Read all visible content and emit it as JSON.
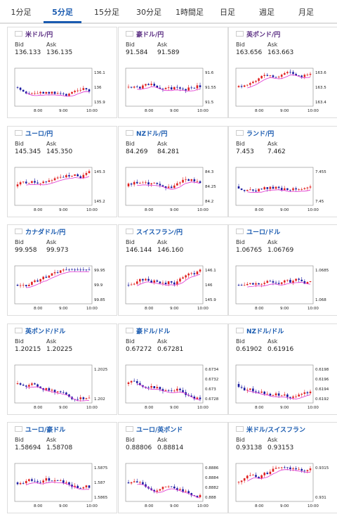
{
  "tabs": [
    "1分足",
    "5分足",
    "15分足",
    "30分足",
    "1時間足",
    "日足",
    "週足",
    "月足"
  ],
  "active_tab": 1,
  "labels": {
    "bid": "Bid",
    "ask": "Ask"
  },
  "colors": {
    "up": "#e02020",
    "down": "#1a1aa0",
    "ma": "#e030d0",
    "title_purple": "#5a2d82",
    "title_blue": "#1a5bb0"
  },
  "cards": [
    {
      "pair": "米ドル/円",
      "title_color": "purple",
      "flag": "us",
      "bid": "136.133",
      "ask": "136.135",
      "chart_data": {
        "type": "candlestick",
        "x_ticks": [
          "8:00",
          "9:00",
          "10:00"
        ],
        "y_ticks": [
          "136.1",
          "136",
          "135.9"
        ],
        "trend": "up"
      }
    },
    {
      "pair": "豪ドル/円",
      "title_color": "purple",
      "flag": "au",
      "bid": "91.584",
      "ask": "91.589",
      "chart_data": {
        "type": "candlestick",
        "x_ticks": [
          "8:00",
          "9:00",
          "10:00"
        ],
        "y_ticks": [
          "91.6",
          "91.55",
          "91.5"
        ],
        "trend": "up"
      }
    },
    {
      "pair": "英ポンド/円",
      "title_color": "purple",
      "flag": "gb",
      "bid": "163.656",
      "ask": "163.663",
      "chart_data": {
        "type": "candlestick",
        "x_ticks": [
          "8:00",
          "9:00",
          "10:00"
        ],
        "y_ticks": [
          "163.6",
          "163.5",
          "163.4"
        ],
        "trend": "up"
      }
    },
    {
      "pair": "ユーロ/円",
      "title_color": "blue",
      "flag": "eu",
      "bid": "145.345",
      "ask": "145.350",
      "chart_data": {
        "type": "candlestick",
        "x_ticks": [
          "8:00",
          "9:00",
          "10:00"
        ],
        "y_ticks": [
          "145.3",
          "145.2"
        ],
        "trend": "up"
      }
    },
    {
      "pair": "NZドル/円",
      "title_color": "blue",
      "flag": "nz",
      "bid": "84.269",
      "ask": "84.281",
      "chart_data": {
        "type": "candlestick",
        "x_ticks": [
          "8:00",
          "9:00",
          "10:00"
        ],
        "y_ticks": [
          "84.3",
          "84.25",
          "84.2"
        ],
        "trend": "up"
      }
    },
    {
      "pair": "ランド/円",
      "title_color": "blue",
      "flag": "za",
      "bid": "7.453",
      "ask": "7.462",
      "chart_data": {
        "type": "candlestick",
        "x_ticks": [
          "8:00",
          "9:00",
          "10:00"
        ],
        "y_ticks": [
          "7.455",
          "7.45"
        ],
        "trend": "flat"
      }
    },
    {
      "pair": "カナダドル/円",
      "title_color": "blue",
      "flag": "ca",
      "bid": "99.958",
      "ask": "99.973",
      "chart_data": {
        "type": "candlestick",
        "x_ticks": [
          "8:00",
          "9:00",
          "10:00"
        ],
        "y_ticks": [
          "99.95",
          "99.9",
          "99.85"
        ],
        "trend": "up"
      }
    },
    {
      "pair": "スイスフラン/円",
      "title_color": "blue",
      "flag": "ch",
      "bid": "146.144",
      "ask": "146.160",
      "chart_data": {
        "type": "candlestick",
        "x_ticks": [
          "8:00",
          "9:00",
          "10:00"
        ],
        "y_ticks": [
          "146.1",
          "146",
          "145.9"
        ],
        "trend": "up"
      }
    },
    {
      "pair": "ユーロ/ドル",
      "title_color": "blue",
      "flag": "eu",
      "bid": "1.06765",
      "ask": "1.06769",
      "chart_data": {
        "type": "candlestick",
        "x_ticks": [
          "8:00",
          "9:00",
          "10:00"
        ],
        "y_ticks": [
          "1.0685",
          "1.068"
        ],
        "trend": "down"
      }
    },
    {
      "pair": "英ポンド/ドル",
      "title_color": "blue",
      "flag": "gb",
      "bid": "1.20215",
      "ask": "1.20225",
      "chart_data": {
        "type": "candlestick",
        "x_ticks": [
          "8:00",
          "9:00",
          "10:00"
        ],
        "y_ticks": [
          "1.2025",
          "1.202"
        ],
        "trend": "down"
      }
    },
    {
      "pair": "豪ドル/ドル",
      "title_color": "blue",
      "flag": "au",
      "bid": "0.67272",
      "ask": "0.67281",
      "chart_data": {
        "type": "candlestick",
        "x_ticks": [
          "8:00",
          "9:00",
          "10:00"
        ],
        "y_ticks": [
          "0.6734",
          "0.6732",
          "0.673",
          "0.6728"
        ],
        "trend": "down"
      }
    },
    {
      "pair": "NZドル/ドル",
      "title_color": "blue",
      "flag": "nz",
      "bid": "0.61902",
      "ask": "0.61916",
      "chart_data": {
        "type": "candlestick",
        "x_ticks": [
          "8:00",
          "9:00",
          "10:00"
        ],
        "y_ticks": [
          "0.6198",
          "0.6196",
          "0.6194",
          "0.6192"
        ],
        "trend": "down"
      }
    },
    {
      "pair": "ユーロ/豪ドル",
      "title_color": "blue",
      "flag": "eu",
      "bid": "1.58694",
      "ask": "1.58708",
      "chart_data": {
        "type": "candlestick",
        "x_ticks": [
          "8:00",
          "9:00",
          "10:00"
        ],
        "y_ticks": [
          "1.5875",
          "1.587",
          "1.5865"
        ],
        "trend": "flat"
      }
    },
    {
      "pair": "ユーロ/英ポンド",
      "title_color": "blue",
      "flag": "eu",
      "bid": "0.88806",
      "ask": "0.88814",
      "chart_data": {
        "type": "candlestick",
        "x_ticks": [
          "8:00",
          "9:00",
          "10:00"
        ],
        "y_ticks": [
          "0.8886",
          "0.8884",
          "0.8882",
          "0.888"
        ],
        "trend": "flat"
      }
    },
    {
      "pair": "米ドル/スイスフラン",
      "title_color": "blue",
      "flag": "us",
      "bid": "0.93138",
      "ask": "0.93153",
      "chart_data": {
        "type": "candlestick",
        "x_ticks": [
          "8:00",
          "9:00",
          "10:00"
        ],
        "y_ticks": [
          "0.9315",
          "0.931"
        ],
        "trend": "up"
      }
    }
  ]
}
